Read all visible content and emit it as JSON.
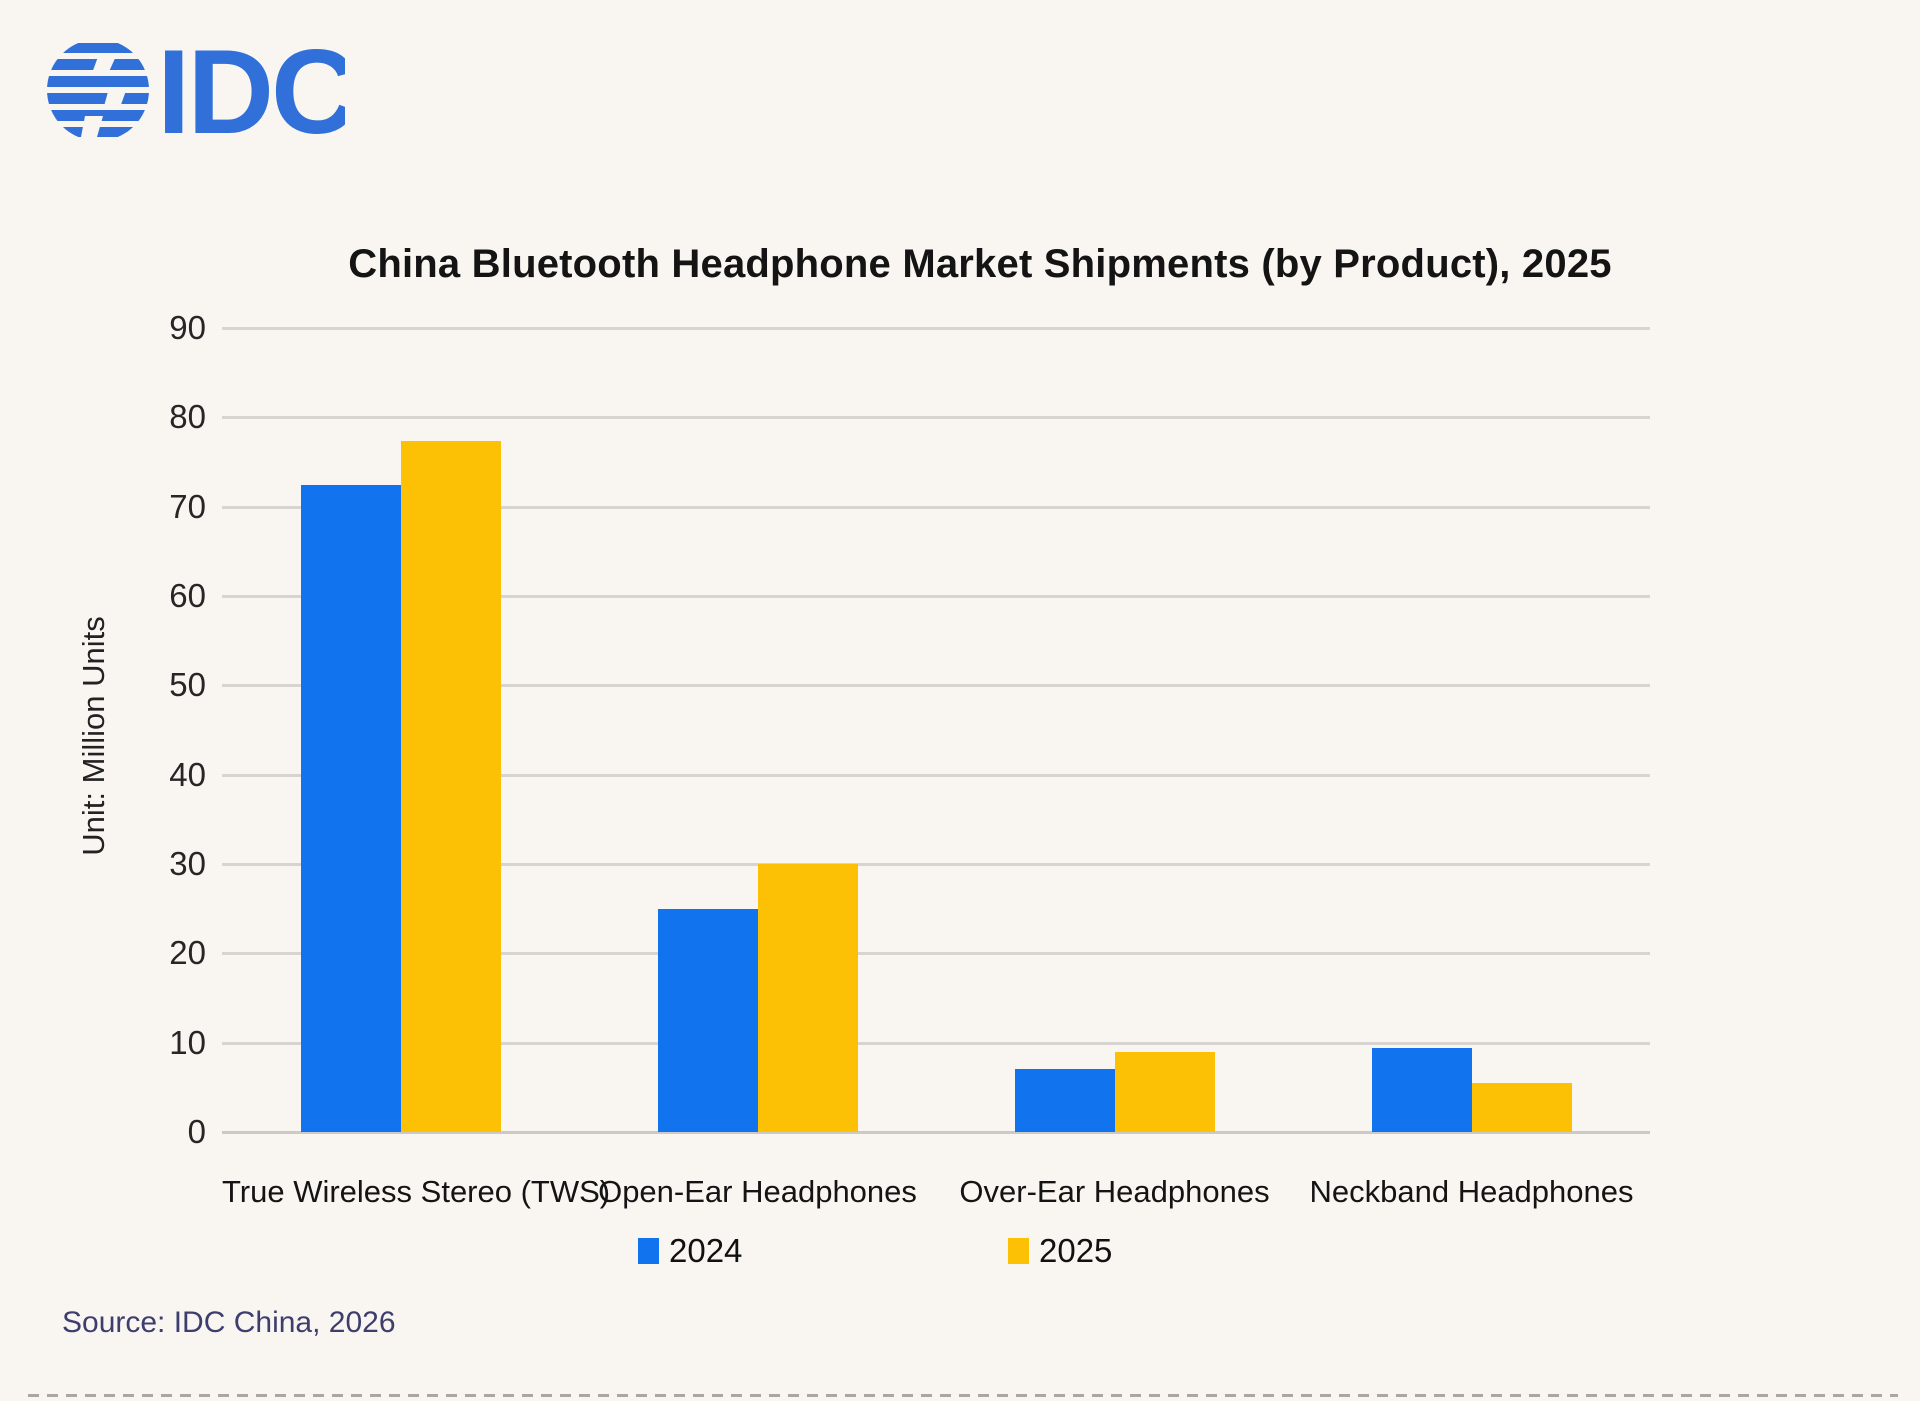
{
  "logo": {
    "text": "IDC",
    "color": "#3170d8",
    "icon": "striped-globe-icon"
  },
  "chart_data": {
    "type": "bar",
    "title": "China Bluetooth Headphone Market Shipments (by Product), 2025",
    "ylabel": "Unit: Million Units",
    "xlabel": "",
    "categories": [
      "True Wireless Stereo (TWS)",
      "Open-Ear Headphones",
      "Over-Ear Headphones",
      "Neckband Headphones"
    ],
    "series": [
      {
        "name": "2024",
        "color": "#1273EE",
        "values": [
          72.4,
          25,
          7,
          9.4
        ]
      },
      {
        "name": "2025",
        "color": "#FCC105",
        "values": [
          77.3,
          30,
          9,
          5.5
        ]
      }
    ],
    "ylim": [
      0,
      90
    ],
    "yticks": [
      0,
      10,
      20,
      30,
      40,
      50,
      60,
      70,
      80,
      90
    ],
    "grid": true,
    "legend_position": "bottom"
  },
  "source": {
    "text": "Source: IDC China, 2026"
  }
}
